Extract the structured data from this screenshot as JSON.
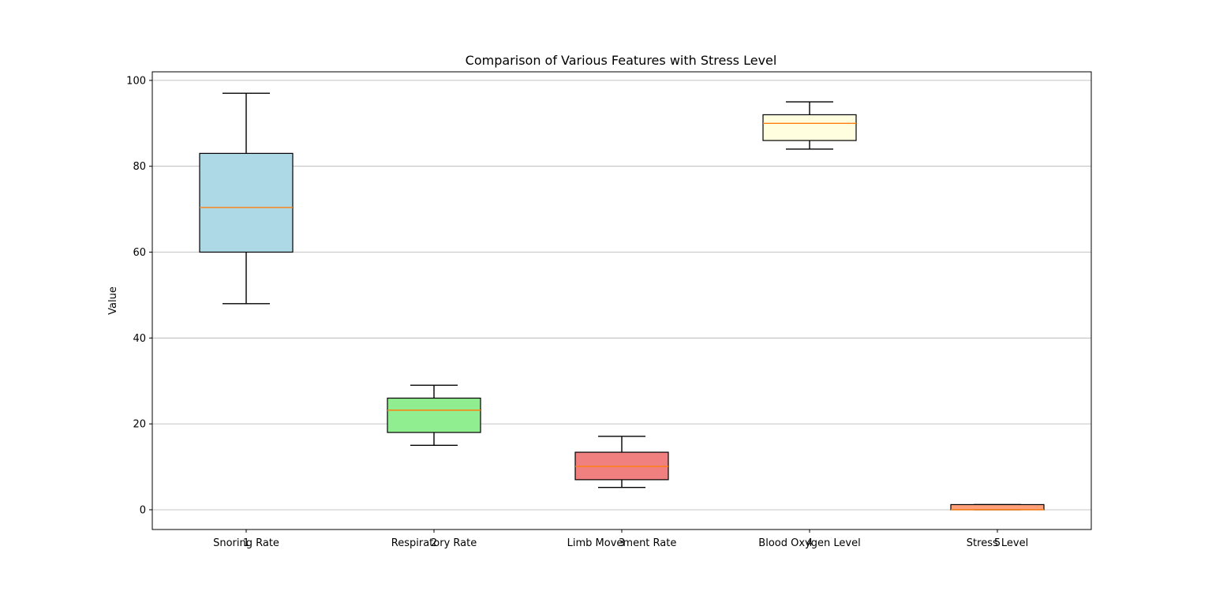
{
  "chart_data": {
    "type": "box",
    "title": "Comparison of Various Features with Stress Level",
    "xlabel": "",
    "ylabel": "Value",
    "ylim": [
      -4.6,
      102
    ],
    "yticks": [
      0,
      20,
      40,
      60,
      80,
      100
    ],
    "ytick_labels": [
      "0",
      "20",
      "40",
      "60",
      "80",
      "100"
    ],
    "positions": [
      1,
      2,
      3,
      4,
      5
    ],
    "position_labels": [
      "1",
      "2",
      "3",
      "4",
      "5"
    ],
    "categories": [
      "Snoring Rate",
      "Respiratory Rate",
      "Limb Movement Rate",
      "Blood Oxygen Level",
      "Stress Level"
    ],
    "grid": "y",
    "boxes": [
      {
        "whisker_low": 48,
        "q1": 60,
        "median": 70.4,
        "q3": 83,
        "whisker_high": 97,
        "color": "#add8e6"
      },
      {
        "whisker_low": 15,
        "q1": 18,
        "median": 23.2,
        "q3": 26,
        "whisker_high": 29,
        "color": "#90ee90"
      },
      {
        "whisker_low": 5.2,
        "q1": 7,
        "median": 10.1,
        "q3": 13.4,
        "whisker_high": 17.1,
        "color": "#f08080"
      },
      {
        "whisker_low": 84,
        "q1": 86,
        "median": 90,
        "q3": 92,
        "whisker_high": 95,
        "color": "#ffffe0"
      },
      {
        "whisker_low": 0,
        "q1": 0,
        "median": 0,
        "q3": 1.2,
        "whisker_high": 1.2,
        "color": "#ffa07a"
      }
    ],
    "median_color": "#ff7f0e",
    "grid_color": "#b0b0b0"
  }
}
